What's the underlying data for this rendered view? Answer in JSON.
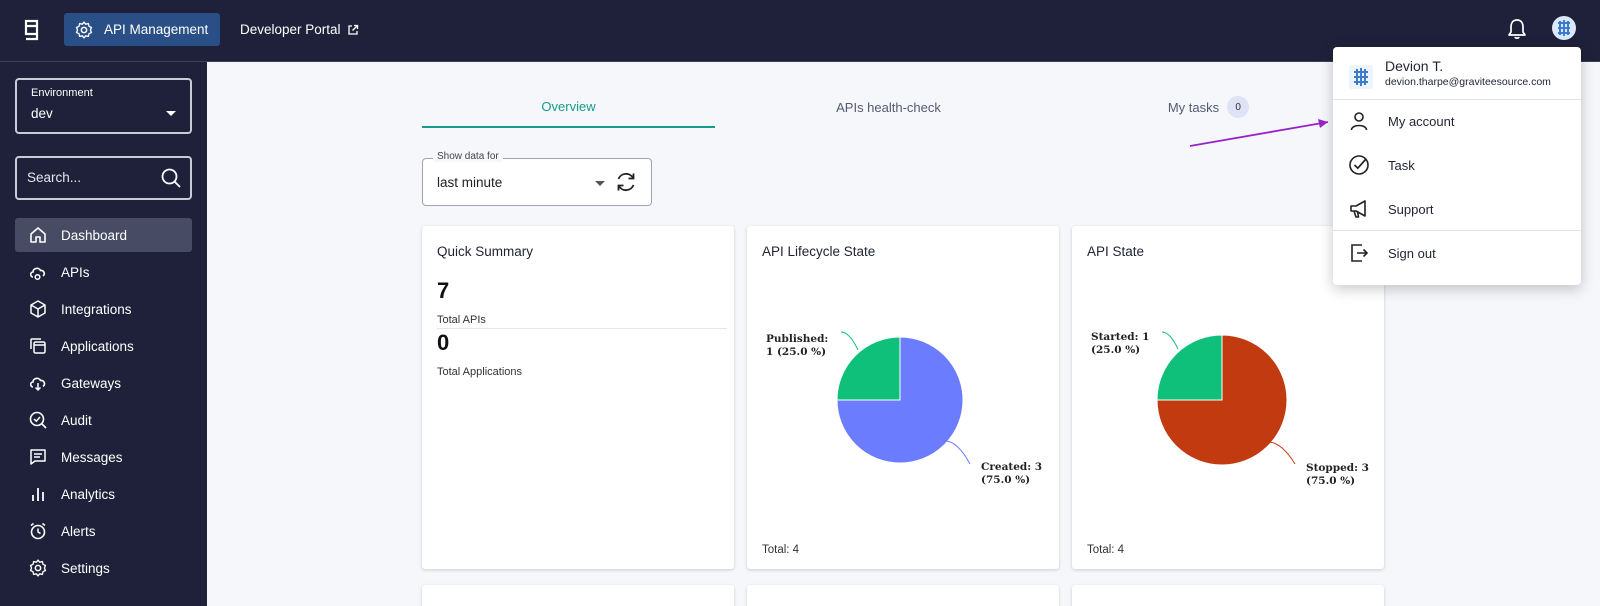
{
  "topbar": {
    "apim_label": "API Management",
    "devportal_label": "Developer Portal"
  },
  "sidebar": {
    "env_label": "Environment",
    "env_value": "dev",
    "search_placeholder": "Search...",
    "items": [
      {
        "label": "Dashboard",
        "icon": "home-icon"
      },
      {
        "label": "APIs",
        "icon": "api-cloud-icon"
      },
      {
        "label": "Integrations",
        "icon": "cube-icon"
      },
      {
        "label": "Applications",
        "icon": "applications-icon"
      },
      {
        "label": "Gateways",
        "icon": "gateway-cloud-icon"
      },
      {
        "label": "Audit",
        "icon": "audit-icon"
      },
      {
        "label": "Messages",
        "icon": "message-icon"
      },
      {
        "label": "Analytics",
        "icon": "bar-chart-icon"
      },
      {
        "label": "Alerts",
        "icon": "alarm-icon"
      },
      {
        "label": "Settings",
        "icon": "gear-icon"
      }
    ]
  },
  "tabs": {
    "overview": "Overview",
    "health": "APIs health-check",
    "tasks": "My tasks",
    "tasks_count": "0"
  },
  "range": {
    "label": "Show data for",
    "value": "last minute"
  },
  "summary": {
    "title": "Quick Summary",
    "total_apis": "7",
    "total_apis_label": "Total APIs",
    "total_apps": "0",
    "total_apps_label": "Total Applications"
  },
  "lifecycle": {
    "title": "API Lifecycle State",
    "label_published_1": "Published:",
    "label_published_2": "1 (25.0 %)",
    "label_created_1": "Created: 3",
    "label_created_2": "(75.0 %)",
    "total": "Total: 4"
  },
  "state": {
    "title": "API State",
    "label_started_1": "Started: 1",
    "label_started_2": "(25.0 %)",
    "label_stopped_1": "Stopped: 3",
    "label_stopped_2": "(75.0 %)",
    "total": "Total: 4"
  },
  "chart_data": [
    {
      "type": "pie",
      "title": "API Lifecycle State",
      "categories": [
        "Published",
        "Created"
      ],
      "values": [
        1,
        3
      ],
      "colors": [
        "#0ec07a",
        "#6b7cff"
      ]
    },
    {
      "type": "pie",
      "title": "API State",
      "categories": [
        "Started",
        "Stopped"
      ],
      "values": [
        1,
        3
      ],
      "colors": [
        "#0ec07a",
        "#c23a10"
      ]
    }
  ],
  "user_menu": {
    "name": "Devion T.",
    "email": "devion.tharpe@graviteesource.com",
    "my_account": "My account",
    "task": "Task",
    "support": "Support",
    "sign_out": "Sign out"
  },
  "colors": {
    "topbar_bg": "#1e2139",
    "accent": "#159b8a",
    "apim_button": "#2a4f86",
    "annotation_arrow": "#9b22c9"
  }
}
